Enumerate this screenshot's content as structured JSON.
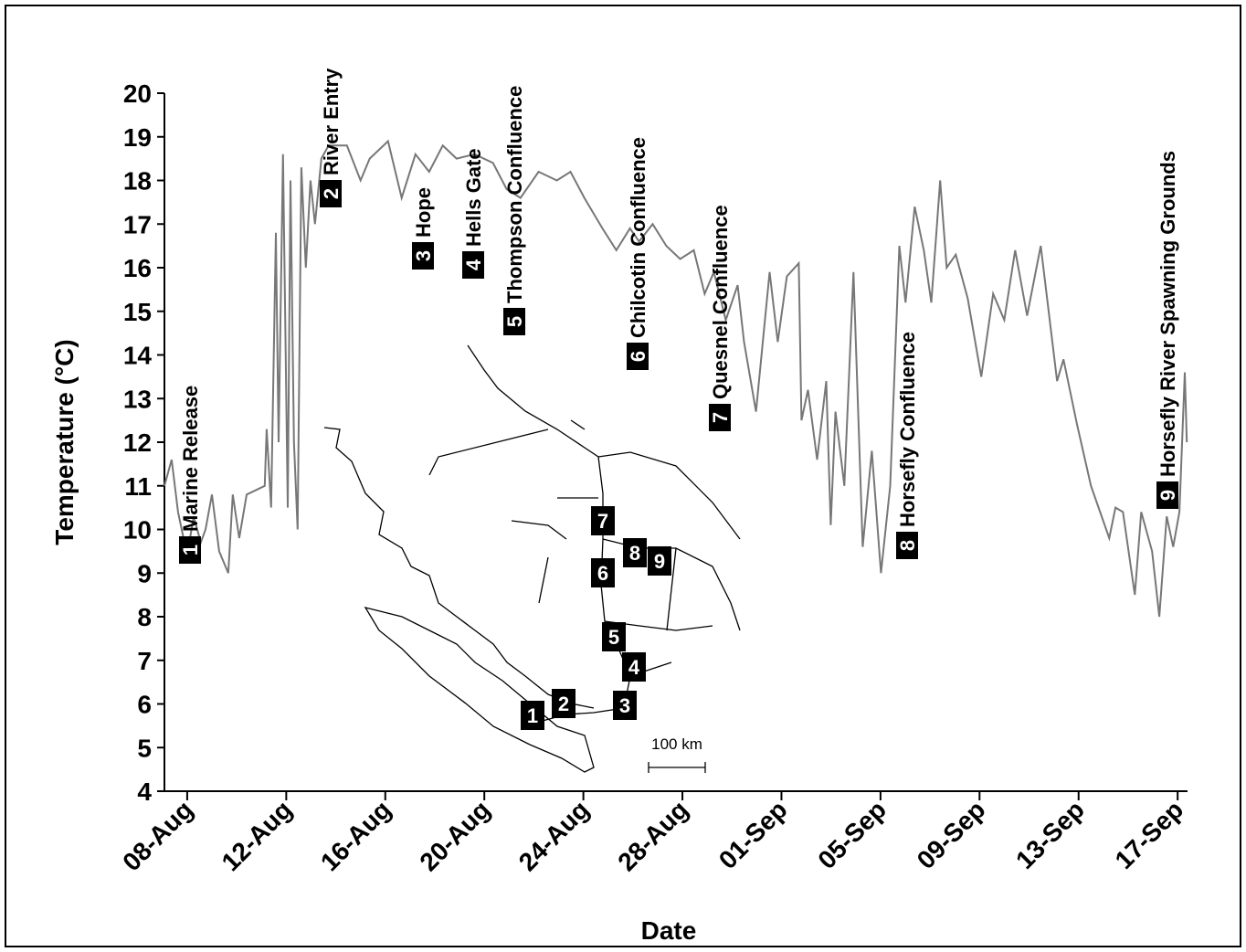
{
  "chart_data": {
    "type": "line",
    "x_label": "Date",
    "y_label": "Temperature (°C)",
    "color": "#777777",
    "xlim": [
      -0.92,
      40.4
    ],
    "ylim": [
      4,
      20
    ],
    "yticks": [
      4,
      5,
      6,
      7,
      8,
      9,
      10,
      11,
      12,
      13,
      14,
      15,
      16,
      17,
      18,
      19,
      20
    ],
    "xticks": [
      {
        "value": 0,
        "label": "08-Aug"
      },
      {
        "value": 4,
        "label": "12-Aug"
      },
      {
        "value": 8,
        "label": "16-Aug"
      },
      {
        "value": 12,
        "label": "20-Aug"
      },
      {
        "value": 16,
        "label": "24-Aug"
      },
      {
        "value": 20,
        "label": "28-Aug"
      },
      {
        "value": 24,
        "label": "01-Sep"
      },
      {
        "value": 28,
        "label": "05-Sep"
      },
      {
        "value": 32,
        "label": "09-Sep"
      },
      {
        "value": 36,
        "label": "13-Sep"
      },
      {
        "value": 40,
        "label": "17-Sep"
      }
    ],
    "x": [
      -0.92,
      -0.63,
      -0.37,
      0,
      0.26,
      0.55,
      0.74,
      1.0,
      1.29,
      1.66,
      1.84,
      2.1,
      2.4,
      3.13,
      3.21,
      3.39,
      3.58,
      3.69,
      3.87,
      4.06,
      4.17,
      4.31,
      4.46,
      4.61,
      4.79,
      4.98,
      5.16,
      5.42,
      5.71,
      6.45,
      7.0,
      7.37,
      8.11,
      8.66,
      9.22,
      9.77,
      10.32,
      10.88,
      11.61,
      12.35,
      12.9,
      13.46,
      14.19,
      14.93,
      15.48,
      16.04,
      16.77,
      17.33,
      17.88,
      18.25,
      18.8,
      19.35,
      19.91,
      20.46,
      20.9,
      21.27,
      21.75,
      22.23,
      22.49,
      22.97,
      23.52,
      23.85,
      24.22,
      24.7,
      24.81,
      25.07,
      25.44,
      25.81,
      25.99,
      26.18,
      26.54,
      26.91,
      27.28,
      27.65,
      28.02,
      28.39,
      28.76,
      29.01,
      29.38,
      29.75,
      30.05,
      30.41,
      30.67,
      31.04,
      31.52,
      32.07,
      32.55,
      33.0,
      33.44,
      33.92,
      34.47,
      35.13,
      35.39,
      35.94,
      36.5,
      37.24,
      37.49,
      37.79,
      38.27,
      38.53,
      38.97,
      39.26,
      39.56,
      39.82,
      40.07,
      40.29,
      40.37
    ],
    "values": [
      11,
      11.6,
      10.4,
      9.4,
      10.3,
      9.7,
      10,
      10.8,
      9.5,
      9.0,
      10.8,
      9.8,
      10.8,
      11,
      12.3,
      10.5,
      16.8,
      12,
      18.6,
      10.5,
      18,
      12,
      10,
      18.3,
      16,
      18,
      17,
      18.5,
      18.8,
      18.8,
      18,
      18.5,
      18.9,
      17.6,
      18.6,
      18.2,
      18.8,
      18.5,
      18.6,
      18.4,
      17.8,
      17.6,
      18.2,
      18,
      18.2,
      17.6,
      16.9,
      16.4,
      16.9,
      16.6,
      17,
      16.5,
      16.2,
      16.4,
      15.4,
      15.9,
      14.8,
      15.6,
      14.3,
      12.7,
      15.9,
      14.3,
      15.8,
      16.1,
      12.5,
      13.2,
      11.6,
      13.4,
      10.1,
      12.7,
      11,
      15.9,
      9.6,
      11.8,
      9,
      11,
      16.5,
      15.2,
      17.4,
      16.4,
      15.2,
      18,
      16,
      16.3,
      15.3,
      13.5,
      15.4,
      14.8,
      16.4,
      14.9,
      16.5,
      13.4,
      13.9,
      12.4,
      11,
      9.8,
      10.5,
      10.4,
      8.5,
      10.4,
      9.5,
      8,
      10.3,
      9.6,
      10.4,
      13.6,
      12
    ],
    "annotations": [
      {
        "number": "1",
        "label": "Marine Release"
      },
      {
        "number": "2",
        "label": "River Entry"
      },
      {
        "number": "3",
        "label": "Hope"
      },
      {
        "number": "4",
        "label": "Hells Gate"
      },
      {
        "number": "5",
        "label": "Thompson Confluence"
      },
      {
        "number": "6",
        "label": "Chilcotin Confluence"
      },
      {
        "number": "7",
        "label": "Quesnel Confluence"
      },
      {
        "number": "8",
        "label": "Horsefly Confluence"
      },
      {
        "number": "9",
        "label": "Horsefly River Spawning Grounds"
      }
    ],
    "map_scale": "100 km"
  }
}
